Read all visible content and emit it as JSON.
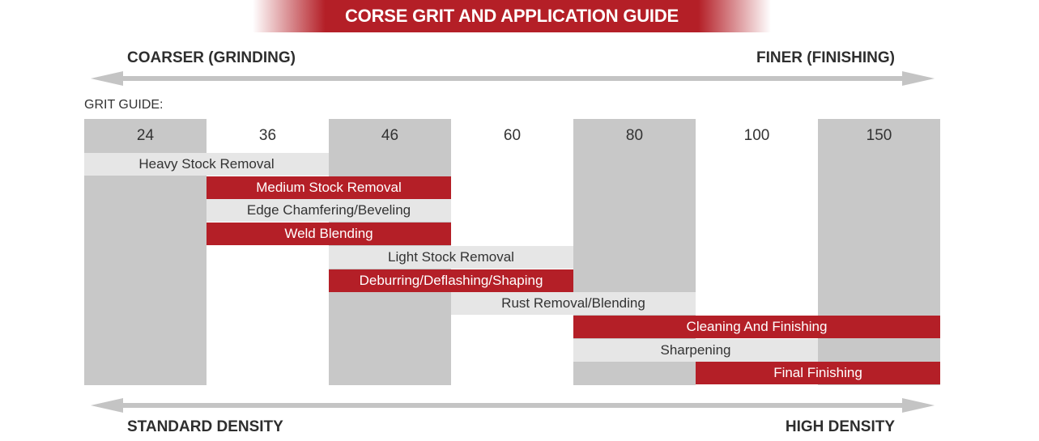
{
  "title": "CORSE GRIT AND APPLICATION GUIDE",
  "top_axis": {
    "left_label": "COARSER (GRINDING)",
    "right_label": "FINER (FINISHING)"
  },
  "grit_guide_label": "GRIT GUIDE:",
  "grits": [
    "24",
    "36",
    "46",
    "60",
    "80",
    "100",
    "150"
  ],
  "applications": [
    {
      "label": "Heavy Stock Removal",
      "grit_from": "24",
      "grit_to": "36",
      "style": "light"
    },
    {
      "label": "Medium Stock Removal",
      "grit_from": "36",
      "grit_to": "46",
      "style": "red"
    },
    {
      "label": "Edge Chamfering/Beveling",
      "grit_from": "36",
      "grit_to": "46",
      "style": "light"
    },
    {
      "label": "Weld Blending",
      "grit_from": "36",
      "grit_to": "46",
      "style": "red"
    },
    {
      "label": "Light Stock Removal",
      "grit_from": "46",
      "grit_to": "60",
      "style": "light"
    },
    {
      "label": "Deburring/Deflashing/Shaping",
      "grit_from": "46",
      "grit_to": "60",
      "style": "red"
    },
    {
      "label": "Rust Removal/Blending",
      "grit_from": "60",
      "grit_to": "80",
      "style": "light"
    },
    {
      "label": "Cleaning And Finishing",
      "grit_from": "80",
      "grit_to": "150",
      "style": "red"
    },
    {
      "label": "Sharpening",
      "grit_from": "80",
      "grit_to": "100",
      "style": "light"
    },
    {
      "label": "Final Finishing",
      "grit_from": "100",
      "grit_to": "150",
      "style": "red"
    }
  ],
  "bottom_axis": {
    "left_label": "STANDARD DENSITY",
    "right_label": "HIGH DENSITY"
  },
  "colors": {
    "accent_red": "#b41f27",
    "column_gray": "#c8c8c8",
    "bar_light": "#e6e6e6",
    "arrow_gray": "#c4c4c4"
  }
}
